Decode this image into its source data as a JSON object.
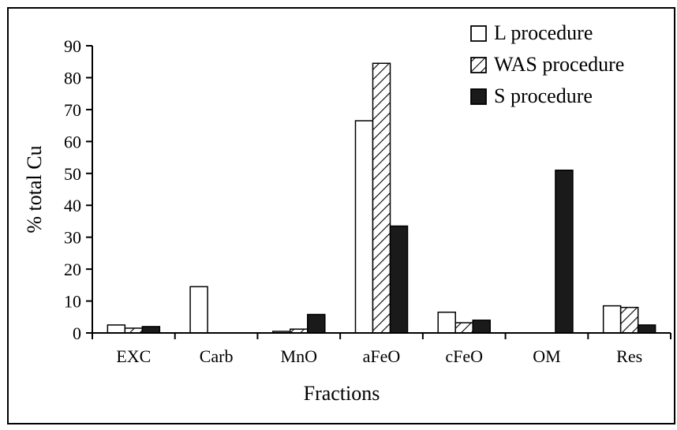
{
  "chart_data": {
    "type": "bar",
    "title": "",
    "xlabel": "Fractions",
    "ylabel": "% total Cu",
    "ylim": [
      0,
      90
    ],
    "yticks": [
      0,
      10,
      20,
      30,
      40,
      50,
      60,
      70,
      80,
      90
    ],
    "grid": false,
    "legend_position": "top-right",
    "categories": [
      "EXC",
      "Carb",
      "MnO",
      "aFeO",
      "cFeO",
      "OM",
      "Res"
    ],
    "series": [
      {
        "name": "L procedure",
        "fill": "white",
        "values": [
          2.5,
          14.5,
          0.5,
          66.5,
          6.5,
          0,
          8.5
        ]
      },
      {
        "name": "WAS procedure",
        "fill": "hatched",
        "values": [
          1.5,
          0,
          1.2,
          84.5,
          3.2,
          0,
          8.0
        ]
      },
      {
        "name": "S procedure",
        "fill": "black",
        "values": [
          2.0,
          0,
          5.8,
          33.5,
          4.0,
          51.0,
          2.5
        ]
      }
    ],
    "colors": {
      "outline": "#000000",
      "solid": "#1a1a1a",
      "background": "#ffffff"
    }
  }
}
